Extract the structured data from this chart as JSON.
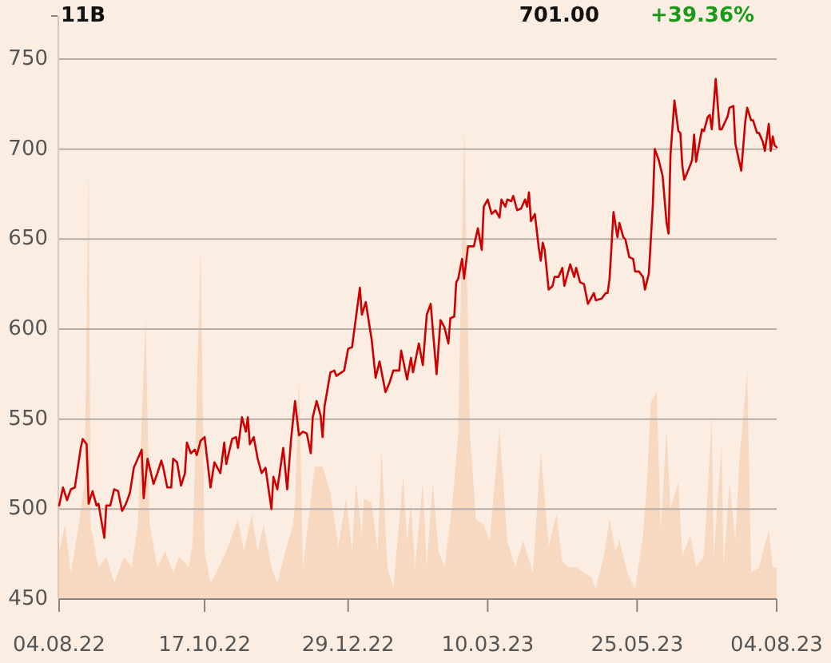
{
  "chart_data": {
    "type": "line",
    "series": [
      {
        "type": "area",
        "axis": "y2",
        "color": "#f7d8c1",
        "x": [
          "2022-08-04",
          "2022-08-07",
          "2022-08-10",
          "2022-08-14",
          "2022-08-17",
          "2022-08-19",
          "2022-08-20",
          "2022-08-24",
          "2022-08-28",
          "2022-09-01",
          "2022-09-06",
          "2022-09-10",
          "2022-09-13",
          "2022-09-17",
          "2022-09-19",
          "2022-09-23",
          "2022-09-27",
          "2022-10-01",
          "2022-10-04",
          "2022-10-09",
          "2022-10-11",
          "2022-10-15",
          "2022-10-17",
          "2022-10-20",
          "2022-10-23",
          "2022-10-28",
          "2022-10-31",
          "2022-11-03",
          "2022-11-06",
          "2022-11-10",
          "2022-11-13",
          "2022-11-16",
          "2022-11-20",
          "2022-11-23",
          "2022-11-27",
          "2022-12-01",
          "2022-12-02",
          "2022-12-04",
          "2022-12-06",
          "2022-12-12",
          "2022-12-16",
          "2022-12-20",
          "2022-12-24",
          "2022-12-28",
          "2022-12-31",
          "2023-01-02",
          "2023-01-05",
          "2023-01-06",
          "2023-01-10",
          "2023-01-13",
          "2023-01-15",
          "2023-01-18",
          "2023-01-21",
          "2023-01-26",
          "2023-01-28",
          "2023-01-30",
          "2023-02-01",
          "2023-02-05",
          "2023-02-07",
          "2023-02-10",
          "2023-02-13",
          "2023-02-16",
          "2023-02-20",
          "2023-02-23",
          "2023-02-26",
          "2023-03-01",
          "2023-03-04",
          "2023-03-08",
          "2023-03-11",
          "2023-03-16",
          "2023-03-20",
          "2023-03-24",
          "2023-03-28",
          "2023-04-02",
          "2023-04-06",
          "2023-04-10",
          "2023-04-14",
          "2023-04-17",
          "2023-04-20",
          "2023-04-24",
          "2023-04-28",
          "2023-05-02",
          "2023-05-04",
          "2023-05-08",
          "2023-05-11",
          "2023-05-14",
          "2023-05-16",
          "2023-05-20",
          "2023-05-24",
          "2023-05-28",
          "2023-05-30",
          "2023-06-01",
          "2023-06-02",
          "2023-06-04",
          "2023-06-06",
          "2023-06-09",
          "2023-06-11",
          "2023-06-15",
          "2023-06-17",
          "2023-06-21",
          "2023-06-24",
          "2023-06-28",
          "2023-07-02",
          "2023-07-03",
          "2023-07-07",
          "2023-07-08",
          "2023-07-11",
          "2023-07-14",
          "2023-07-16",
          "2023-07-20",
          "2023-07-22",
          "2023-07-26",
          "2023-07-31",
          "2023-08-02",
          "2023-08-04"
        ],
        "values": [
          900000000,
          1400000000,
          500000000,
          1400000000,
          2200000000,
          8200000000,
          1400000000,
          600000000,
          800000000,
          300000000,
          800000000,
          600000000,
          1400000000,
          5300000000,
          1400000000,
          600000000,
          900000000,
          500000000,
          800000000,
          600000000,
          1100000000,
          6600000000,
          900000000,
          300000000,
          500000000,
          900000000,
          1200000000,
          1500000000,
          900000000,
          1600000000,
          900000000,
          1400000000,
          600000000,
          300000000,
          900000000,
          1400000000,
          1800000000,
          4200000000,
          600000000,
          2500000000,
          2500000000,
          2000000000,
          1000000000,
          1900000000,
          900000000,
          2200000000,
          1200000000,
          1900000000,
          1800000000,
          900000000,
          2800000000,
          600000000,
          200000000,
          2300000000,
          1100000000,
          1800000000,
          600000000,
          2200000000,
          600000000,
          2200000000,
          900000000,
          600000000,
          1800000000,
          3100000000,
          8900000000,
          3100000000,
          1500000000,
          1400000000,
          1100000000,
          3200000000,
          1100000000,
          600000000,
          1100000000,
          500000000,
          2800000000,
          1000000000,
          1600000000,
          700000000,
          600000000,
          600000000,
          500000000,
          400000000,
          200000000,
          800000000,
          1500000000,
          900000000,
          1100000000,
          500000000,
          200000000,
          1200000000,
          2200000000,
          3700000000,
          3800000000,
          3900000000,
          1300000000,
          3200000000,
          1700000000,
          2200000000,
          800000000,
          1200000000,
          600000000,
          800000000,
          3400000000,
          800000000,
          2900000000,
          600000000,
          2200000000,
          1100000000,
          2600000000,
          4300000000,
          500000000,
          600000000,
          1300000000,
          600000000,
          600000000
        ]
      },
      {
        "color": "#cc0000",
        "x": [
          "2022-08-04",
          "2022-08-06",
          "2022-08-08",
          "2022-08-10",
          "2022-08-12",
          "2022-08-15",
          "2022-08-16",
          "2022-08-18",
          "2022-08-19",
          "2022-08-21",
          "2022-08-23",
          "2022-08-24",
          "2022-08-27",
          "2022-08-28",
          "2022-08-30",
          "2022-09-01",
          "2022-09-03",
          "2022-09-05",
          "2022-09-07",
          "2022-09-09",
          "2022-09-11",
          "2022-09-13",
          "2022-09-15",
          "2022-09-16",
          "2022-09-18",
          "2022-09-21",
          "2022-09-23",
          "2022-09-25",
          "2022-09-26",
          "2022-09-28",
          "2022-09-30",
          "2022-10-01",
          "2022-10-03",
          "2022-10-05",
          "2022-10-07",
          "2022-10-08",
          "2022-10-10",
          "2022-10-12",
          "2022-10-13",
          "2022-10-15",
          "2022-10-17",
          "2022-10-20",
          "2022-10-22",
          "2022-10-25",
          "2022-10-27",
          "2022-10-28",
          "2022-10-31",
          "2022-11-02",
          "2022-11-03",
          "2022-11-05",
          "2022-11-07",
          "2022-11-08",
          "2022-11-09",
          "2022-11-11",
          "2022-11-13",
          "2022-11-15",
          "2022-11-17",
          "2022-11-20",
          "2022-11-21",
          "2022-11-23",
          "2022-11-26",
          "2022-11-28",
          "2022-11-30",
          "2022-12-02",
          "2022-12-04",
          "2022-12-06",
          "2022-12-08",
          "2022-12-10",
          "2022-12-11",
          "2022-12-13",
          "2022-12-15",
          "2022-12-16",
          "2022-12-17",
          "2022-12-20",
          "2022-12-22",
          "2022-12-23",
          "2022-12-27",
          "2022-12-29",
          "2022-12-31",
          "2023-01-04",
          "2023-01-05",
          "2023-01-07",
          "2023-01-10",
          "2023-01-12",
          "2023-01-14",
          "2023-01-17",
          "2023-01-19",
          "2023-01-21",
          "2023-01-24",
          "2023-01-25",
          "2023-01-28",
          "2023-01-30",
          "2023-01-31",
          "2023-02-03",
          "2023-02-05",
          "2023-02-07",
          "2023-02-09",
          "2023-02-12",
          "2023-02-14",
          "2023-02-16",
          "2023-02-18",
          "2023-02-19",
          "2023-02-21",
          "2023-02-22",
          "2023-02-23",
          "2023-02-25",
          "2023-02-26",
          "2023-02-28",
          "2023-03-03",
          "2023-03-05",
          "2023-03-07",
          "2023-03-08",
          "2023-03-10",
          "2023-03-12",
          "2023-03-14",
          "2023-03-16",
          "2023-03-17",
          "2023-03-19",
          "2023-03-20",
          "2023-03-22",
          "2023-03-23",
          "2023-03-25",
          "2023-03-27",
          "2023-03-29",
          "2023-03-30",
          "2023-03-31",
          "2023-04-01",
          "2023-04-03",
          "2023-04-05",
          "2023-04-06",
          "2023-04-07",
          "2023-04-08",
          "2023-04-10",
          "2023-04-12",
          "2023-04-13",
          "2023-04-15",
          "2023-04-17",
          "2023-04-18",
          "2023-04-21",
          "2023-04-23",
          "2023-04-24",
          "2023-04-26",
          "2023-04-28",
          "2023-04-30",
          "2023-05-03",
          "2023-05-04",
          "2023-05-07",
          "2023-05-09",
          "2023-05-10",
          "2023-05-11",
          "2023-05-13",
          "2023-05-15",
          "2023-05-16",
          "2023-05-18",
          "2023-05-19",
          "2023-05-21",
          "2023-05-23",
          "2023-05-24",
          "2023-05-26",
          "2023-05-28",
          "2023-05-29",
          "2023-05-31",
          "2023-06-02",
          "2023-06-03",
          "2023-06-05",
          "2023-06-07",
          "2023-06-09",
          "2023-06-10",
          "2023-06-11",
          "2023-06-13",
          "2023-06-15",
          "2023-06-16",
          "2023-06-17",
          "2023-06-18",
          "2023-06-21",
          "2023-06-22",
          "2023-06-23",
          "2023-06-24",
          "2023-06-27",
          "2023-06-28",
          "2023-06-30",
          "2023-07-01",
          "2023-07-02",
          "2023-07-04",
          "2023-07-06",
          "2023-07-07",
          "2023-07-10",
          "2023-07-11",
          "2023-07-13",
          "2023-07-14",
          "2023-07-16",
          "2023-07-17",
          "2023-07-19",
          "2023-07-20",
          "2023-07-22",
          "2023-07-23",
          "2023-07-25",
          "2023-07-26",
          "2023-07-28",
          "2023-07-29",
          "2023-07-31",
          "2023-08-01",
          "2023-08-02",
          "2023-08-03",
          "2023-08-04"
        ],
        "values": [
          502,
          512,
          505,
          511,
          512,
          534,
          539,
          536,
          503,
          510,
          502,
          503,
          484,
          502,
          502,
          511,
          510,
          499,
          503,
          509,
          523,
          528,
          533,
          506,
          528,
          514,
          520,
          527,
          523,
          512,
          512,
          528,
          526,
          513,
          520,
          537,
          531,
          533,
          530,
          538,
          540,
          512,
          526,
          520,
          537,
          525,
          539,
          540,
          534,
          551,
          543,
          551,
          536,
          540,
          528,
          520,
          523,
          500,
          518,
          511,
          534,
          511,
          539,
          560,
          541,
          543,
          542,
          531,
          551,
          560,
          552,
          540,
          557,
          576,
          577,
          574,
          577,
          589,
          590,
          623,
          608,
          615,
          594,
          573,
          582,
          565,
          570,
          577,
          577,
          588,
          572,
          584,
          576,
          592,
          580,
          608,
          614,
          575,
          605,
          601,
          592,
          606,
          607,
          626,
          628,
          639,
          628,
          646,
          646,
          656,
          644,
          668,
          672,
          664,
          666,
          662,
          672,
          668,
          672,
          671,
          674,
          666,
          667,
          672,
          668,
          676,
          660,
          664,
          645,
          638,
          648,
          644,
          622,
          624,
          629,
          629,
          634,
          624,
          636,
          629,
          634,
          626,
          625,
          614,
          620,
          616,
          617,
          620,
          620,
          628,
          665,
          651,
          659,
          651,
          650,
          640,
          639,
          632,
          632,
          629,
          622,
          631,
          669,
          700,
          694,
          685,
          659,
          653,
          697,
          727,
          710,
          709,
          691,
          683,
          691,
          694,
          708,
          693,
          711,
          710,
          718,
          719,
          711,
          739,
          711,
          711,
          718,
          723,
          724,
          703,
          693,
          688,
          715,
          723,
          716,
          716,
          709,
          709,
          704,
          699,
          714,
          699,
          707,
          702,
          701
        ]
      }
    ],
    "xlim": [
      "2022-08-04",
      "2023-08-04"
    ],
    "xticks": [
      {
        "value": "2022-08-04",
        "label": "04.08.22"
      },
      {
        "value": "2022-10-17",
        "label": "17.10.22"
      },
      {
        "value": "2022-12-29",
        "label": "29.12.22"
      },
      {
        "value": "2023-03-10",
        "label": "10.03.23"
      },
      {
        "value": "2023-05-25",
        "label": "25.05.23"
      },
      {
        "value": "2023-08-04",
        "label": "04.08.23"
      }
    ],
    "ylim": [
      450,
      750
    ],
    "yticks": [
      450,
      500,
      550,
      600,
      650,
      700,
      750
    ],
    "y2lim": [
      0,
      11000000000
    ],
    "y2ticks": [
      {
        "value": 11000000000,
        "label": "11B"
      }
    ],
    "grid": "y",
    "annotations": [
      "701.00",
      "+39.36%"
    ]
  }
}
